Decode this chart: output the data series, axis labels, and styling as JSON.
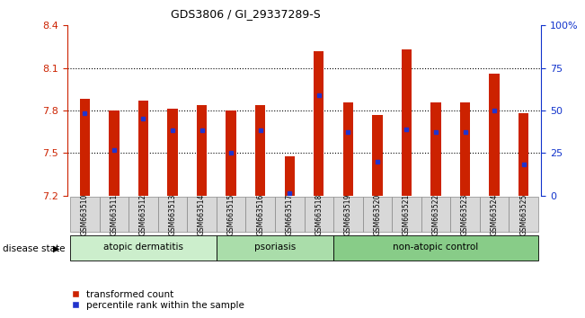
{
  "title": "GDS3806 / GI_29337289-S",
  "samples": [
    "GSM663510",
    "GSM663511",
    "GSM663512",
    "GSM663513",
    "GSM663514",
    "GSM663515",
    "GSM663516",
    "GSM663517",
    "GSM663518",
    "GSM663519",
    "GSM663520",
    "GSM663521",
    "GSM663522",
    "GSM663523",
    "GSM663524",
    "GSM663525"
  ],
  "bar_values": [
    7.88,
    7.8,
    7.87,
    7.81,
    7.84,
    7.8,
    7.84,
    7.48,
    8.22,
    7.86,
    7.77,
    8.23,
    7.86,
    7.86,
    8.06,
    7.78
  ],
  "percentile_values": [
    7.78,
    7.52,
    7.74,
    7.66,
    7.66,
    7.5,
    7.66,
    7.22,
    7.91,
    7.65,
    7.44,
    7.67,
    7.65,
    7.65,
    7.8,
    7.42
  ],
  "ymin": 7.2,
  "ymax": 8.4,
  "yticks_left": [
    7.2,
    7.5,
    7.8,
    8.1,
    8.4
  ],
  "yticks_right": [
    0,
    25,
    50,
    75,
    100
  ],
  "bar_color": "#cc2200",
  "dot_color": "#2233cc",
  "bar_width": 0.35,
  "groups": [
    {
      "label": "atopic dermatitis",
      "start": 0,
      "end": 4,
      "color": "#cceecc"
    },
    {
      "label": "psoriasis",
      "start": 5,
      "end": 8,
      "color": "#aaddaa"
    },
    {
      "label": "non-atopic control",
      "start": 9,
      "end": 15,
      "color": "#88cc88"
    }
  ],
  "legend_bar_label": "transformed count",
  "legend_dot_label": "percentile rank within the sample",
  "disease_state_label": "disease state",
  "background_color": "#ffffff",
  "left_tick_color": "#cc2200",
  "right_tick_color": "#1133cc",
  "gridline_ticks": [
    7.5,
    7.8,
    8.1
  ]
}
